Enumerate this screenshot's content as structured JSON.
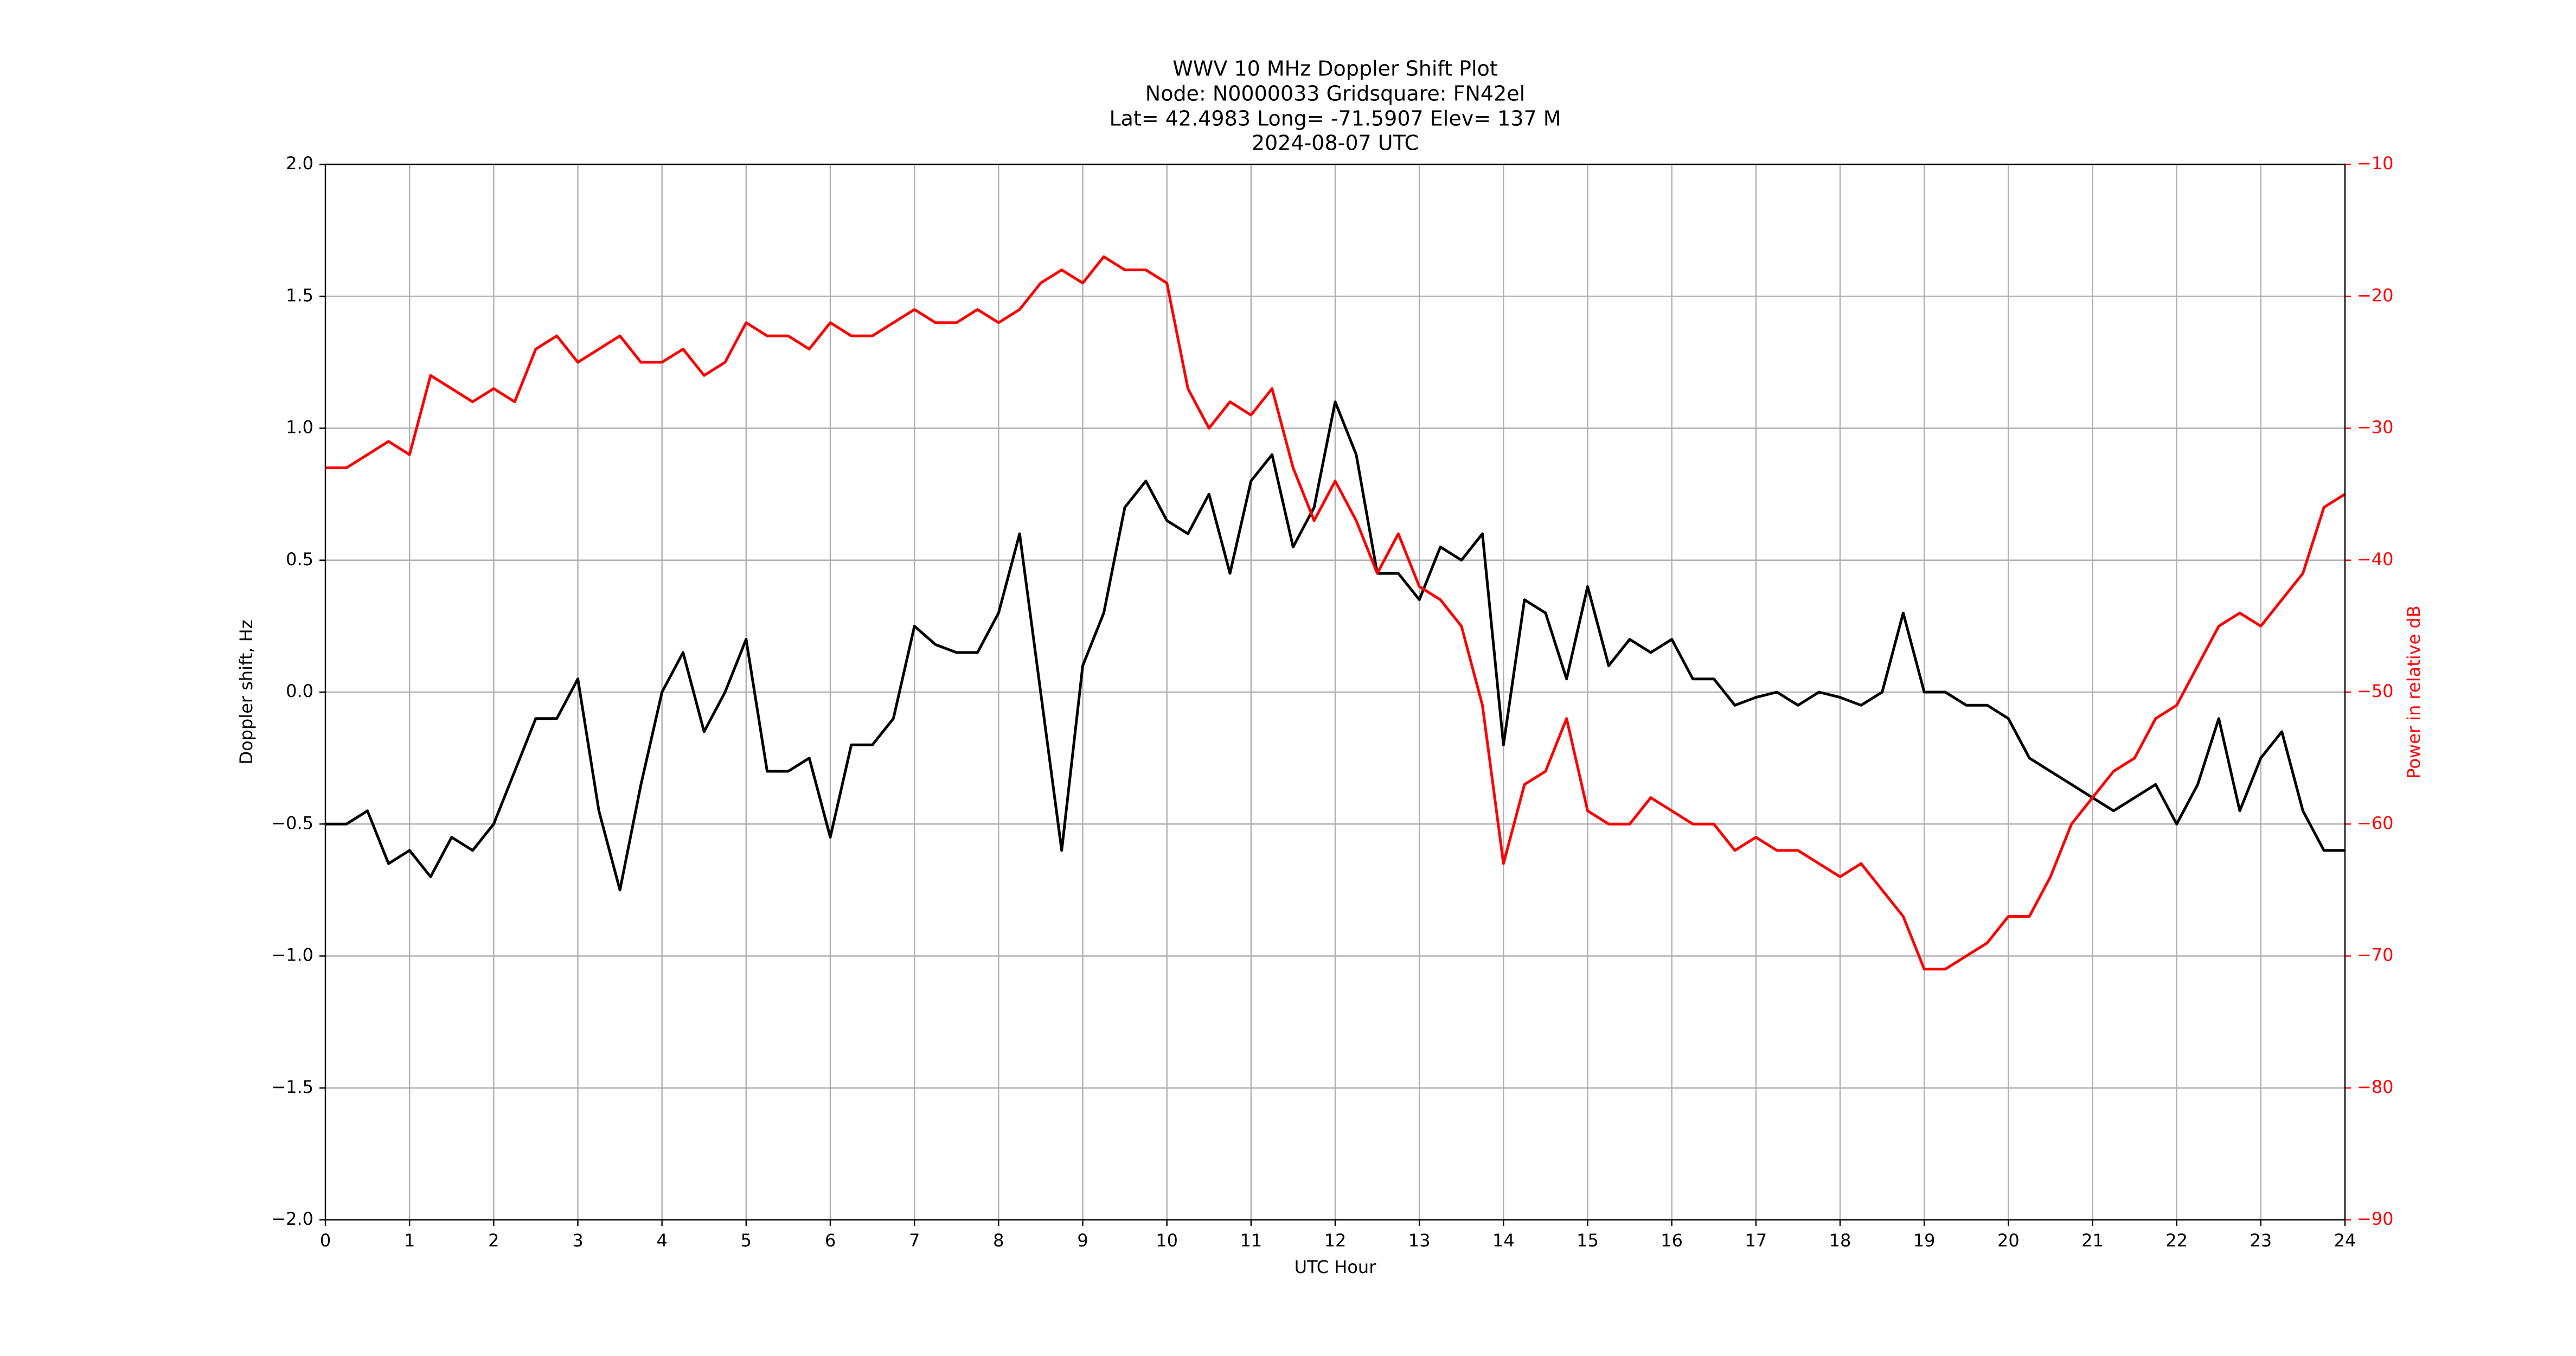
{
  "chart_data": {
    "type": "line",
    "title": "WWV 10 MHz Doppler Shift Plot",
    "subtitle": [
      "Node:  N0000033     Gridsquare:  FN42el",
      "Lat= 42.4983    Long= -71.5907    Elev= 137 M",
      "2024-08-07  UTC"
    ],
    "xlabel": "UTC Hour",
    "ylabel": "Doppler shift, Hz",
    "y2label": "Power in relative dB",
    "x": [
      0,
      0.25,
      0.5,
      0.75,
      1,
      1.25,
      1.5,
      1.75,
      2,
      2.25,
      2.5,
      2.75,
      3,
      3.25,
      3.5,
      3.75,
      4,
      4.25,
      4.5,
      4.75,
      5,
      5.25,
      5.5,
      5.75,
      6,
      6.25,
      6.5,
      6.75,
      7,
      7.25,
      7.5,
      7.75,
      8,
      8.25,
      8.5,
      8.75,
      9,
      9.25,
      9.5,
      9.75,
      10,
      10.25,
      10.5,
      10.75,
      11,
      11.25,
      11.5,
      11.75,
      12,
      12.25,
      12.5,
      12.75,
      13,
      13.25,
      13.5,
      13.75,
      14,
      14.25,
      14.5,
      14.75,
      15,
      15.25,
      15.5,
      15.75,
      16,
      16.25,
      16.5,
      16.75,
      17,
      17.25,
      17.5,
      17.75,
      18,
      18.25,
      18.5,
      18.75,
      19,
      19.25,
      19.5,
      19.75,
      20,
      20.25,
      20.5,
      20.75,
      21,
      21.25,
      21.5,
      21.75,
      22,
      22.25,
      22.5,
      22.75,
      23,
      23.25,
      23.5,
      23.75,
      24
    ],
    "series": [
      {
        "color": "#000000",
        "axis": "y",
        "values": [
          -0.5,
          -0.5,
          -0.45,
          -0.65,
          -0.6,
          -0.7,
          -0.55,
          -0.6,
          -0.5,
          -0.3,
          -0.1,
          -0.1,
          0.05,
          -0.45,
          -0.75,
          -0.35,
          0.0,
          0.15,
          -0.15,
          0.0,
          0.2,
          -0.3,
          -0.3,
          -0.25,
          -0.55,
          -0.2,
          -0.2,
          -0.1,
          0.25,
          0.18,
          0.15,
          0.15,
          0.3,
          0.6,
          0.0,
          -0.6,
          0.1,
          0.3,
          0.7,
          0.8,
          0.65,
          0.6,
          0.75,
          0.45,
          0.8,
          0.9,
          0.55,
          0.7,
          1.1,
          0.9,
          0.45,
          0.45,
          0.35,
          0.55,
          0.5,
          0.6,
          -0.2,
          0.35,
          0.3,
          0.05,
          0.4,
          0.1,
          0.2,
          0.15,
          0.2,
          0.05,
          0.05,
          -0.05,
          -0.02,
          0.0,
          -0.05,
          0.0,
          -0.02,
          -0.05,
          0.0,
          0.3,
          0.0,
          0.0,
          -0.05,
          -0.05,
          -0.1,
          -0.25,
          -0.3,
          -0.35,
          -0.4,
          -0.45,
          -0.4,
          -0.35,
          -0.5,
          -0.35,
          -0.1,
          -0.45,
          -0.25,
          -0.15,
          -0.45,
          -0.6,
          -0.6
        ]
      },
      {
        "color": "#ff0000",
        "axis": "y2",
        "values": [
          -33,
          -33,
          -32,
          -31,
          -32,
          -26,
          -27,
          -28,
          -27,
          -28,
          -24,
          -23,
          -25,
          -24,
          -23,
          -25,
          -25,
          -24,
          -26,
          -25,
          -22,
          -23,
          -23,
          -24,
          -22,
          -23,
          -23,
          -22,
          -21,
          -22,
          -22,
          -21,
          -22,
          -21,
          -19,
          -18,
          -19,
          -17,
          -18,
          -18,
          -19,
          -27,
          -30,
          -28,
          -29,
          -27,
          -33,
          -37,
          -34,
          -37,
          -41,
          -38,
          -42,
          -43,
          -45,
          -51,
          -63,
          -57,
          -56,
          -52,
          -59,
          -60,
          -60,
          -58,
          -59,
          -60,
          -60,
          -62,
          -61,
          -62,
          -62,
          -63,
          -64,
          -63,
          -65,
          -67,
          -71,
          -71,
          -70,
          -69,
          -67,
          -67,
          -64,
          -60,
          -58,
          -56,
          -55,
          -52,
          -51,
          -48,
          -45,
          -44,
          -45,
          -43,
          -41,
          -36,
          -35
        ]
      }
    ],
    "xlim": [
      0,
      24
    ],
    "xticks": [
      0,
      1,
      2,
      3,
      4,
      5,
      6,
      7,
      8,
      9,
      10,
      11,
      12,
      13,
      14,
      15,
      16,
      17,
      18,
      19,
      20,
      21,
      22,
      23,
      24
    ],
    "ylim": [
      -2,
      2
    ],
    "yticks": [
      {
        "value": -2,
        "label": "−2.0"
      },
      {
        "value": -1.5,
        "label": "−1.5"
      },
      {
        "value": -1,
        "label": "−1.0"
      },
      {
        "value": -0.5,
        "label": "−0.5"
      },
      {
        "value": 0,
        "label": "0.0"
      },
      0.5,
      {
        "value": 1,
        "label": "1.0"
      },
      1.5,
      {
        "value": 2,
        "label": "2.0"
      }
    ],
    "y2lim": [
      -90,
      -10
    ],
    "y2ticks": [
      {
        "value": -90,
        "label": "−90"
      },
      {
        "value": -80,
        "label": "−80"
      },
      {
        "value": -70,
        "label": "−70"
      },
      {
        "value": -60,
        "label": "−60"
      },
      {
        "value": -50,
        "label": "−50"
      },
      {
        "value": -40,
        "label": "−40"
      },
      {
        "value": -30,
        "label": "−30"
      },
      {
        "value": -20,
        "label": "−20"
      },
      {
        "value": -10,
        "label": "−10"
      }
    ],
    "y2color": "#ff0000",
    "grid": true
  }
}
